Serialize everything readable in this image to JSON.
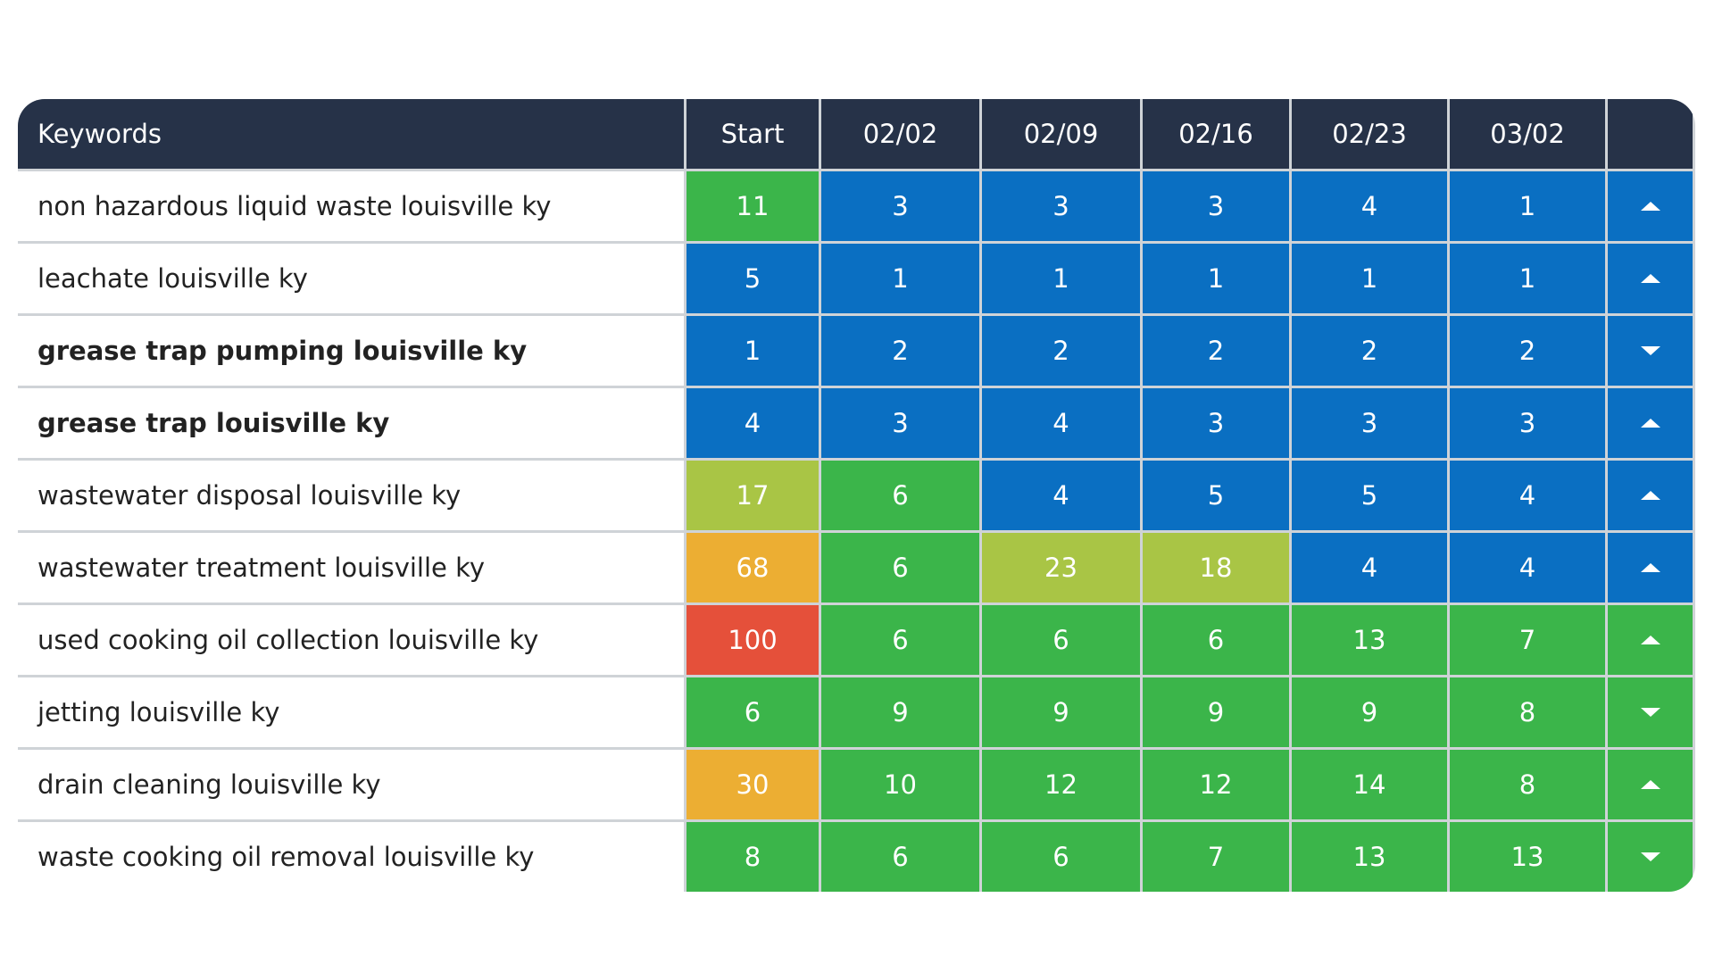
{
  "table": {
    "header": [
      "Keywords",
      "Start",
      "02/02",
      "02/09",
      "02/16",
      "02/23",
      "03/02"
    ],
    "rows": [
      {
        "keyword": "non hazardous liquid waste louisville ky",
        "bold": false,
        "trend": "up",
        "values": [
          11,
          3,
          3,
          3,
          4,
          1
        ],
        "colors": [
          "#3bb54a",
          "#0a6fc2",
          "#0a6fc2",
          "#0a6fc2",
          "#0a6fc2",
          "#0a6fc2"
        ]
      },
      {
        "keyword": "leachate louisville ky",
        "bold": false,
        "trend": "up",
        "values": [
          5,
          1,
          1,
          1,
          1,
          1
        ],
        "colors": [
          "#0a6fc2",
          "#0a6fc2",
          "#0a6fc2",
          "#0a6fc2",
          "#0a6fc2",
          "#0a6fc2"
        ]
      },
      {
        "keyword": "grease trap pumping louisville ky",
        "bold": true,
        "trend": "down",
        "values": [
          1,
          2,
          2,
          2,
          2,
          2
        ],
        "colors": [
          "#0a6fc2",
          "#0a6fc2",
          "#0a6fc2",
          "#0a6fc2",
          "#0a6fc2",
          "#0a6fc2"
        ]
      },
      {
        "keyword": "grease trap louisville ky",
        "bold": true,
        "trend": "up",
        "values": [
          4,
          3,
          4,
          3,
          3,
          3
        ],
        "colors": [
          "#0a6fc2",
          "#0a6fc2",
          "#0a6fc2",
          "#0a6fc2",
          "#0a6fc2",
          "#0a6fc2"
        ]
      },
      {
        "keyword": "wastewater disposal louisville ky",
        "bold": false,
        "trend": "up",
        "values": [
          17,
          6,
          4,
          5,
          5,
          4
        ],
        "colors": [
          "#a9c545",
          "#3bb54a",
          "#0a6fc2",
          "#0a6fc2",
          "#0a6fc2",
          "#0a6fc2"
        ]
      },
      {
        "keyword": "wastewater treatment louisville ky",
        "bold": false,
        "trend": "up",
        "values": [
          68,
          6,
          23,
          18,
          4,
          4
        ],
        "colors": [
          "#ecae33",
          "#3bb54a",
          "#a9c545",
          "#a9c545",
          "#0a6fc2",
          "#0a6fc2"
        ]
      },
      {
        "keyword": "used cooking oil collection louisville ky",
        "bold": false,
        "trend": "up",
        "values": [
          100,
          6,
          6,
          6,
          13,
          7
        ],
        "colors": [
          "#e5503a",
          "#3bb54a",
          "#3bb54a",
          "#3bb54a",
          "#3bb54a",
          "#3bb54a"
        ]
      },
      {
        "keyword": "jetting louisville ky",
        "bold": false,
        "trend": "down",
        "values": [
          6,
          9,
          9,
          9,
          9,
          8
        ],
        "colors": [
          "#3bb54a",
          "#3bb54a",
          "#3bb54a",
          "#3bb54a",
          "#3bb54a",
          "#3bb54a"
        ]
      },
      {
        "keyword": "drain cleaning louisville ky",
        "bold": false,
        "trend": "up",
        "values": [
          30,
          10,
          12,
          12,
          14,
          8
        ],
        "colors": [
          "#ecae33",
          "#3bb54a",
          "#3bb54a",
          "#3bb54a",
          "#3bb54a",
          "#3bb54a"
        ]
      },
      {
        "keyword": "waste cooking oil removal louisville ky",
        "bold": false,
        "trend": "down",
        "values": [
          8,
          6,
          6,
          7,
          13,
          13
        ],
        "colors": [
          "#3bb54a",
          "#3bb54a",
          "#3bb54a",
          "#3bb54a",
          "#3bb54a",
          "#3bb54a"
        ]
      }
    ]
  }
}
